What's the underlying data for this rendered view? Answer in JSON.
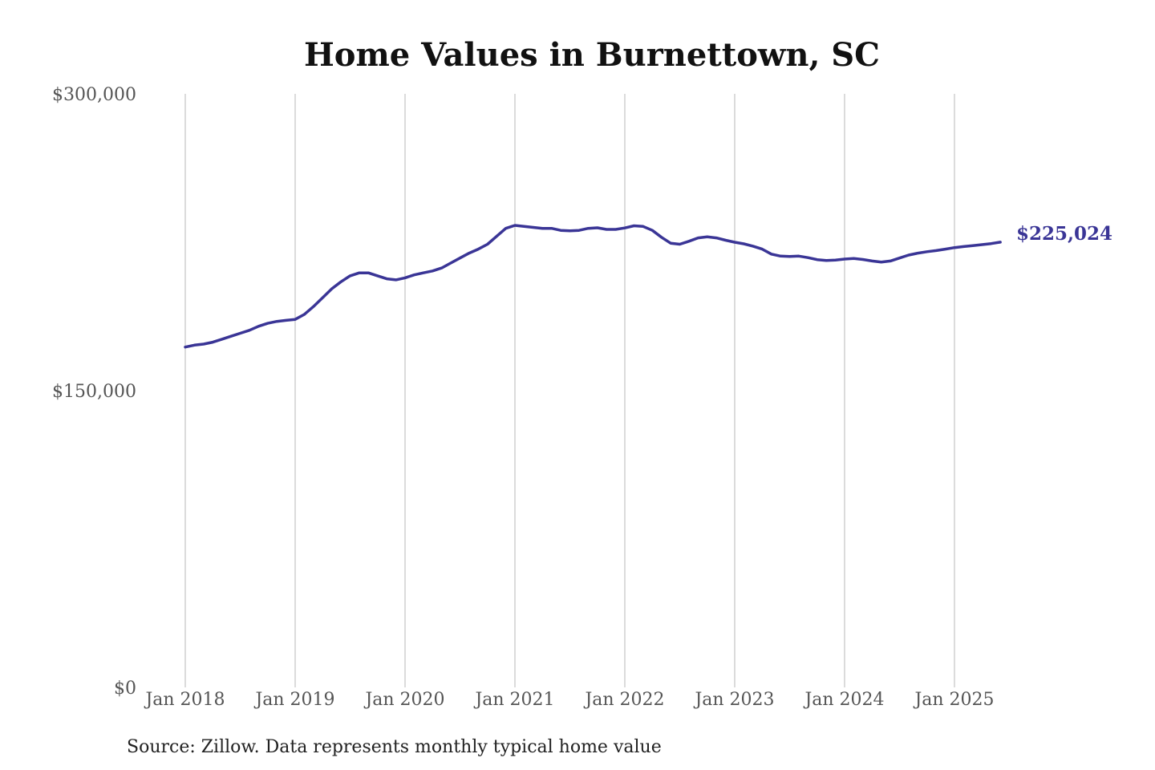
{
  "chart_data": {
    "type": "line",
    "title": "Home Values in Burnettown, SC",
    "xlabel": "",
    "ylabel": "",
    "source_note": "Source: Zillow. Data represents monthly typical home value",
    "ylim": [
      0,
      300000
    ],
    "y_ticks": [
      {
        "value": 0,
        "label": "$0"
      },
      {
        "value": 150000,
        "label": "$150,000"
      },
      {
        "value": 300000,
        "label": "$300,000"
      }
    ],
    "x_ticks": [
      "Jan 2018",
      "Jan 2019",
      "Jan 2020",
      "Jan 2021",
      "Jan 2022",
      "Jan 2023",
      "Jan 2024",
      "Jan 2025"
    ],
    "x_start": "Jan 2018",
    "x_end": "Jun 2025",
    "grid": "vertical",
    "legend": "none",
    "line_color": "#3a3596",
    "end_label": "$225,024",
    "series": [
      {
        "points": [
          {
            "x": "Jan 2018",
            "y": 172000
          },
          {
            "x": "Feb 2018",
            "y": 173000
          },
          {
            "x": "Mar 2018",
            "y": 173500
          },
          {
            "x": "Apr 2018",
            "y": 174500
          },
          {
            "x": "May 2018",
            "y": 176000
          },
          {
            "x": "Jun 2018",
            "y": 177500
          },
          {
            "x": "Jul 2018",
            "y": 179000
          },
          {
            "x": "Aug 2018",
            "y": 180500
          },
          {
            "x": "Sep 2018",
            "y": 182500
          },
          {
            "x": "Oct 2018",
            "y": 184000
          },
          {
            "x": "Nov 2018",
            "y": 185000
          },
          {
            "x": "Dec 2018",
            "y": 185500
          },
          {
            "x": "Jan 2019",
            "y": 186000
          },
          {
            "x": "Feb 2019",
            "y": 188500
          },
          {
            "x": "Mar 2019",
            "y": 192500
          },
          {
            "x": "Apr 2019",
            "y": 197000
          },
          {
            "x": "May 2019",
            "y": 201500
          },
          {
            "x": "Jun 2019",
            "y": 205000
          },
          {
            "x": "Jul 2019",
            "y": 208000
          },
          {
            "x": "Aug 2019",
            "y": 209500
          },
          {
            "x": "Sep 2019",
            "y": 209500
          },
          {
            "x": "Oct 2019",
            "y": 208000
          },
          {
            "x": "Nov 2019",
            "y": 206500
          },
          {
            "x": "Dec 2019",
            "y": 206000
          },
          {
            "x": "Jan 2020",
            "y": 207000
          },
          {
            "x": "Feb 2020",
            "y": 208500
          },
          {
            "x": "Mar 2020",
            "y": 209500
          },
          {
            "x": "Apr 2020",
            "y": 210500
          },
          {
            "x": "May 2020",
            "y": 212000
          },
          {
            "x": "Jun 2020",
            "y": 214500
          },
          {
            "x": "Jul 2020",
            "y": 217000
          },
          {
            "x": "Aug 2020",
            "y": 219500
          },
          {
            "x": "Sep 2020",
            "y": 221500
          },
          {
            "x": "Oct 2020",
            "y": 224000
          },
          {
            "x": "Nov 2020",
            "y": 228000
          },
          {
            "x": "Dec 2020",
            "y": 232000
          },
          {
            "x": "Jan 2021",
            "y": 233500
          },
          {
            "x": "Feb 2021",
            "y": 233000
          },
          {
            "x": "Mar 2021",
            "y": 232500
          },
          {
            "x": "Apr 2021",
            "y": 232000
          },
          {
            "x": "May 2021",
            "y": 232000
          },
          {
            "x": "Jun 2021",
            "y": 231000
          },
          {
            "x": "Jul 2021",
            "y": 230800
          },
          {
            "x": "Aug 2021",
            "y": 231000
          },
          {
            "x": "Sep 2021",
            "y": 232000
          },
          {
            "x": "Oct 2021",
            "y": 232300
          },
          {
            "x": "Nov 2021",
            "y": 231500
          },
          {
            "x": "Dec 2021",
            "y": 231500
          },
          {
            "x": "Jan 2022",
            "y": 232200
          },
          {
            "x": "Feb 2022",
            "y": 233300
          },
          {
            "x": "Mar 2022",
            "y": 233000
          },
          {
            "x": "Apr 2022",
            "y": 231000
          },
          {
            "x": "May 2022",
            "y": 227500
          },
          {
            "x": "Jun 2022",
            "y": 224500
          },
          {
            "x": "Jul 2022",
            "y": 224000
          },
          {
            "x": "Aug 2022",
            "y": 225500
          },
          {
            "x": "Sep 2022",
            "y": 227200
          },
          {
            "x": "Oct 2022",
            "y": 227700
          },
          {
            "x": "Nov 2022",
            "y": 227200
          },
          {
            "x": "Dec 2022",
            "y": 226000
          },
          {
            "x": "Jan 2023",
            "y": 225000
          },
          {
            "x": "Feb 2023",
            "y": 224200
          },
          {
            "x": "Mar 2023",
            "y": 223000
          },
          {
            "x": "Apr 2023",
            "y": 221500
          },
          {
            "x": "May 2023",
            "y": 219000
          },
          {
            "x": "Jun 2023",
            "y": 218000
          },
          {
            "x": "Jul 2023",
            "y": 217800
          },
          {
            "x": "Aug 2023",
            "y": 218000
          },
          {
            "x": "Sep 2023",
            "y": 217200
          },
          {
            "x": "Oct 2023",
            "y": 216200
          },
          {
            "x": "Nov 2023",
            "y": 215800
          },
          {
            "x": "Dec 2023",
            "y": 216000
          },
          {
            "x": "Jan 2024",
            "y": 216500
          },
          {
            "x": "Feb 2024",
            "y": 216800
          },
          {
            "x": "Mar 2024",
            "y": 216300
          },
          {
            "x": "Apr 2024",
            "y": 215500
          },
          {
            "x": "May 2024",
            "y": 215000
          },
          {
            "x": "Jun 2024",
            "y": 215500
          },
          {
            "x": "Jul 2024",
            "y": 217000
          },
          {
            "x": "Aug 2024",
            "y": 218500
          },
          {
            "x": "Sep 2024",
            "y": 219500
          },
          {
            "x": "Oct 2024",
            "y": 220200
          },
          {
            "x": "Nov 2024",
            "y": 220800
          },
          {
            "x": "Dec 2024",
            "y": 221500
          },
          {
            "x": "Jan 2025",
            "y": 222300
          },
          {
            "x": "Feb 2025",
            "y": 222800
          },
          {
            "x": "Mar 2025",
            "y": 223300
          },
          {
            "x": "Apr 2025",
            "y": 223800
          },
          {
            "x": "May 2025",
            "y": 224300
          },
          {
            "x": "Jun 2025",
            "y": 225024
          }
        ]
      }
    ]
  }
}
